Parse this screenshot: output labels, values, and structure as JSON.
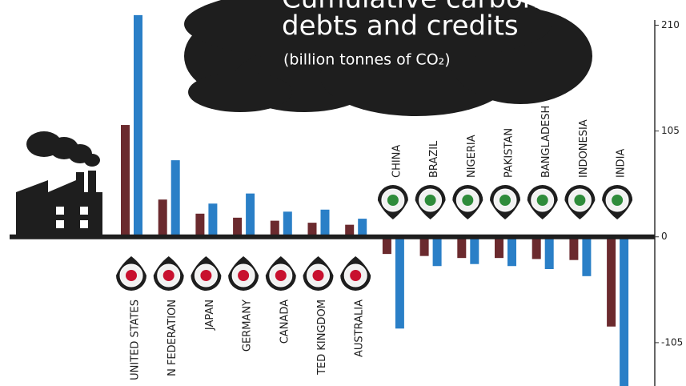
{
  "chart_data": {
    "type": "bar",
    "title": "Cumulative carbon",
    "subtitle": "debts and credits",
    "y_label": "(billion tonnes of CO₂)",
    "categories": [
      "UNITED STATES",
      "N FEDERATION",
      "JAPAN",
      "GERMANY",
      "CANADA",
      "TED KINGDOM",
      "AUSTRALIA",
      "CHINA",
      "BRAZIL",
      "NIGERIA",
      "PAKISTAN",
      "BANGLADESH",
      "INDONESIA",
      "INDIA"
    ],
    "series": [
      {
        "color": "#6b2a2e",
        "values": [
          111,
          37,
          23,
          19,
          16,
          14,
          12,
          -17,
          -19,
          -21,
          -21,
          -22,
          -23,
          -89
        ]
      },
      {
        "color": "#2a7fc7",
        "values": [
          220,
          76,
          33,
          43,
          25,
          27,
          18,
          -91,
          -29,
          -27,
          -29,
          -32,
          -39,
          -148
        ]
      }
    ],
    "ylim": [
      -148,
      235
    ],
    "yticks": [
      210,
      105,
      0,
      -105
    ]
  }
}
